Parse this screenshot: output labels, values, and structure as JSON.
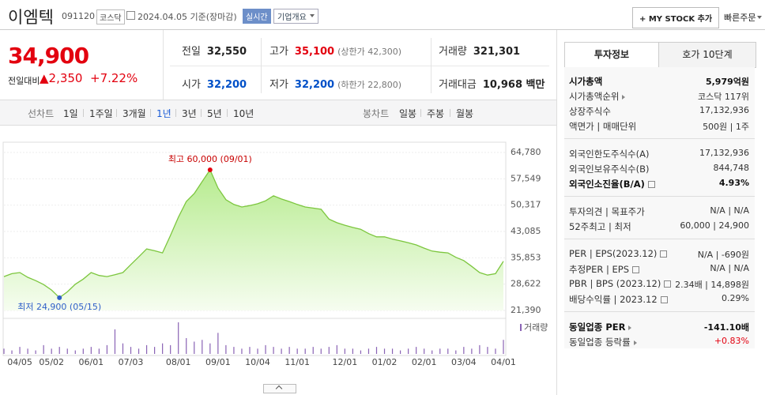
{
  "header": {
    "name": "이엠텍",
    "code": "091120",
    "market": "코스닥",
    "date": "2024.04.05 기준(장마감)",
    "realtime": "실시간",
    "overview": "기업개요",
    "my_stock": "+ MY STOCK 추가",
    "quick_order": "빠른주문"
  },
  "quote": {
    "price": "34,900",
    "change_label": "전일대비",
    "change": "▲2,350",
    "change_pct": "+7.22%"
  },
  "summary": [
    [
      {
        "label": "전일",
        "value": "32,550"
      },
      {
        "label": "고가",
        "value": "35,100",
        "note": "(상한가 42,300)",
        "color": "#e3000f"
      },
      {
        "label": "거래량",
        "value": "321,301"
      }
    ],
    [
      {
        "label": "시가",
        "value": "32,200",
        "color": "#0050c8"
      },
      {
        "label": "저가",
        "value": "32,200",
        "note": "(하한가 22,800)",
        "color": "#0050c8"
      },
      {
        "label": "거래대금",
        "value": "10,968 백만"
      }
    ]
  ],
  "chart_tabs": {
    "line_label": "선차트",
    "line": [
      "1일",
      "1주일",
      "3개월",
      "1년",
      "3년",
      "5년",
      "10년"
    ],
    "selected": 3,
    "candle_label": "봉차트",
    "candle": [
      "일봉",
      "주봉",
      "월봉"
    ]
  },
  "chart_data": {
    "type": "area",
    "color": "#7cc63e",
    "categories": [
      null,
      null,
      "04/05",
      null,
      null,
      null,
      "05/02",
      null,
      null,
      null,
      null,
      "06/01",
      null,
      null,
      null,
      null,
      "07/03",
      null,
      null,
      null,
      null,
      null,
      "08/01",
      null,
      null,
      null,
      null,
      "09/01",
      null,
      null,
      null,
      null,
      "10/04",
      null,
      null,
      null,
      null,
      "11/01",
      null,
      null,
      null,
      null,
      null,
      "12/01",
      null,
      null,
      null,
      null,
      "01/02",
      null,
      null,
      null,
      null,
      "02/01",
      null,
      null,
      null,
      null,
      "03/04",
      null,
      null,
      null,
      null,
      "04/01"
    ],
    "values": [
      30700,
      31500,
      31800,
      30500,
      29600,
      28500,
      27000,
      24900,
      26500,
      28600,
      30000,
      31800,
      31000,
      30700,
      31200,
      31800,
      34000,
      36100,
      38300,
      37800,
      37200,
      42000,
      47000,
      51300,
      53500,
      56800,
      60000,
      55000,
      51800,
      50500,
      49800,
      50200,
      50700,
      51500,
      52900,
      52000,
      51300,
      50500,
      49800,
      49500,
      49200,
      46500,
      45500,
      44800,
      44200,
      43700,
      42500,
      41600,
      41600,
      41000,
      40500,
      40000,
      39400,
      38500,
      37700,
      37400,
      37200,
      36000,
      35100,
      33500,
      31800,
      31100,
      31500,
      34900
    ],
    "ylim": [
      21390,
      64780
    ],
    "yticks": [
      {
        "value": 64780,
        "label": "64,780"
      },
      {
        "value": 57549,
        "label": "57,549"
      },
      {
        "value": 50317,
        "label": "50,317"
      },
      {
        "value": 43085,
        "label": "43,085"
      },
      {
        "value": 35853,
        "label": "35,853"
      },
      {
        "value": 28622,
        "label": "28,622"
      },
      {
        "value": 21390,
        "label": "21,390"
      }
    ],
    "annotations": {
      "high": "최고 60,000 (09/01)",
      "low": "최저 24,900 (05/15)"
    },
    "volume": {
      "name": "거래량",
      "color": "#8a63b5",
      "values": [
        3,
        2,
        4,
        3,
        2,
        5,
        3,
        4,
        3,
        2,
        3,
        4,
        3,
        5,
        14,
        6,
        4,
        3,
        5,
        4,
        6,
        5,
        18,
        9,
        7,
        8,
        6,
        12,
        5,
        4,
        3,
        4,
        3,
        5,
        4,
        3,
        4,
        3,
        3,
        4,
        3,
        4,
        5,
        3,
        3,
        2,
        3,
        4,
        3,
        3,
        2,
        3,
        4,
        3,
        2,
        3,
        3,
        2,
        4,
        3,
        5,
        4,
        3,
        8
      ]
    }
  },
  "info_panel": {
    "tabs": [
      "투자정보",
      "호가 10단계"
    ],
    "groups": [
      [
        {
          "label": "시가총액",
          "value": "5,979억원",
          "strong": true
        },
        {
          "label": "시가총액순위",
          "value": "코스닥 117위",
          "arrow": true
        },
        {
          "label": "상장주식수",
          "value": "17,132,936"
        },
        {
          "label": "액면가 | 매매단위",
          "value": "500원 | 1주"
        }
      ],
      [
        {
          "label": "외국인한도주식수(A)",
          "value": "17,132,936"
        },
        {
          "label": "외국인보유주식수(B)",
          "value": "844,748"
        },
        {
          "label": "외국인소진율(B/A)",
          "value": "4.93%",
          "strong": true,
          "info": true
        }
      ],
      [
        {
          "label": "투자의견 | 목표주가",
          "value": "N/A | N/A"
        },
        {
          "label": "52주최고 | 최저",
          "value": "60,000 | 24,900"
        }
      ],
      [
        {
          "label": "PER | EPS(2023.12)",
          "value": "N/A | -690원",
          "info": true
        },
        {
          "label": "추정PER | EPS",
          "value": "N/A | N/A",
          "info": true
        },
        {
          "label": "PBR | BPS (2023.12)",
          "value": "2.34배 | 14,898원",
          "info": true
        },
        {
          "label": "배당수익률 | 2023.12",
          "value": "0.29%",
          "info": true
        }
      ],
      [
        {
          "label": "동일업종 PER",
          "value": "-141.10배",
          "strong": true,
          "arrow": true
        },
        {
          "label": "동일업종 등락률",
          "value": "+0.83%",
          "arrow": true,
          "color": "#e3000f"
        }
      ]
    ]
  }
}
